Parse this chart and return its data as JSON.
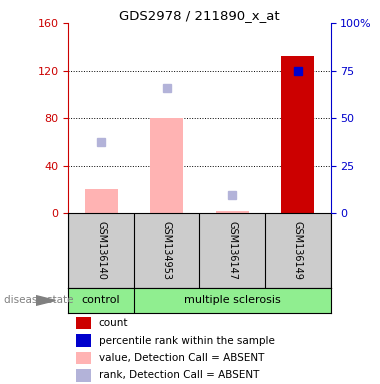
{
  "title": "GDS2978 / 211890_x_at",
  "samples": [
    "GSM136140",
    "GSM134953",
    "GSM136147",
    "GSM136149"
  ],
  "bar_pink_values": [
    20,
    80,
    2,
    0
  ],
  "bar_red_values": [
    0,
    0,
    0,
    132
  ],
  "square_lightblue_values": [
    60,
    105,
    15,
    0
  ],
  "square_blue_values": [
    0,
    0,
    0,
    120
  ],
  "ylim_left": [
    0,
    160
  ],
  "ylim_right": [
    0,
    100
  ],
  "yticks_left": [
    0,
    40,
    80,
    120,
    160
  ],
  "yticks_right": [
    0,
    25,
    50,
    75,
    100
  ],
  "ytick_labels_right": [
    "0",
    "25",
    "50",
    "75",
    "100%"
  ],
  "disease_state_label": "disease state",
  "legend_items": [
    {
      "color": "#cc0000",
      "label": "count"
    },
    {
      "color": "#0000cc",
      "label": "percentile rank within the sample"
    },
    {
      "color": "#ffb3b3",
      "label": "value, Detection Call = ABSENT"
    },
    {
      "color": "#b3b3d9",
      "label": "rank, Detection Call = ABSENT"
    }
  ],
  "bar_width": 0.5,
  "plot_bg": "#ffffff",
  "ax_bg": "#ffffff",
  "left_axis_color": "#cc0000",
  "right_axis_color": "#0000cc",
  "sample_box_color": "#cccccc",
  "pink_bar_color": "#ffb3b3",
  "red_bar_color": "#cc0000",
  "lightblue_sq_color": "#b3b3d9",
  "blue_sq_color": "#0000cc",
  "green_color": "#90EE90"
}
